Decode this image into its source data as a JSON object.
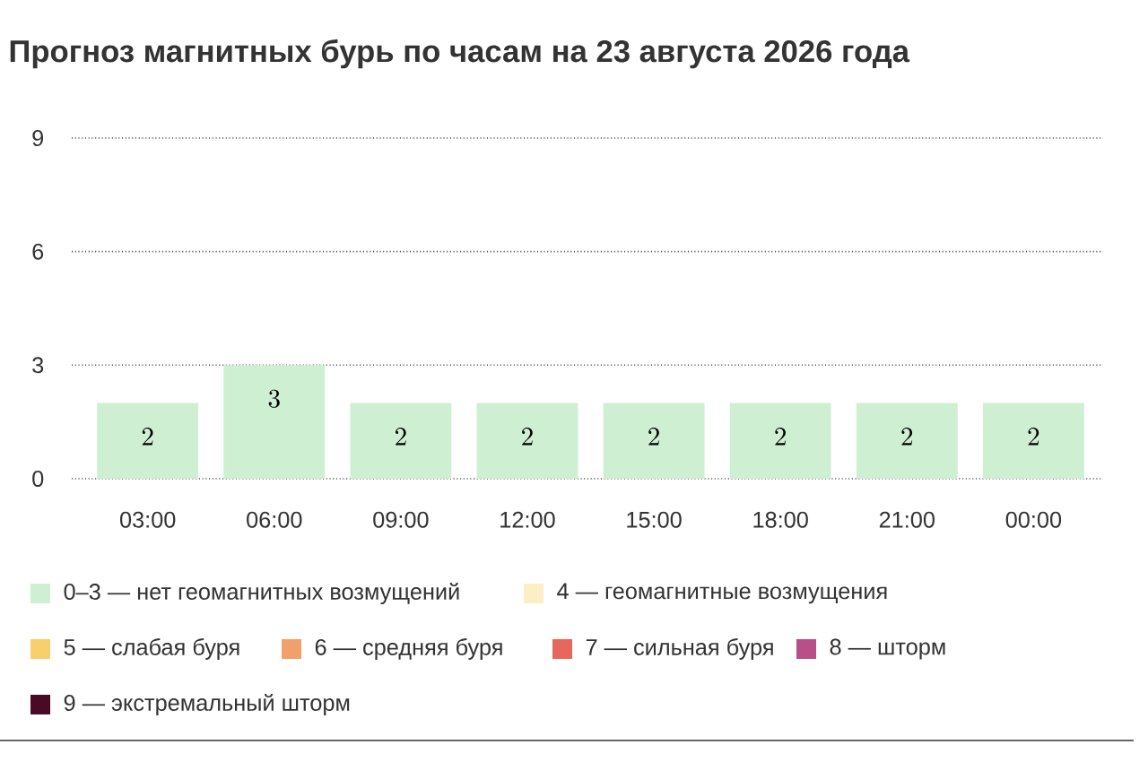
{
  "chart_data": {
    "type": "bar",
    "title": "Прогноз магнитных бурь по часам на 23 августа 2026 года",
    "categories": [
      "03:00",
      "06:00",
      "09:00",
      "12:00",
      "15:00",
      "18:00",
      "21:00",
      "00:00"
    ],
    "series": [
      {
        "name": "0–3 — нет геомагнитных возмущений",
        "color": "#cfefd3",
        "values": [
          2,
          3,
          2,
          2,
          2,
          2,
          2,
          2
        ]
      },
      {
        "name": "4 — геомагнитные возмущения",
        "color": "#fcefc6",
        "values": [
          null,
          null,
          null,
          null,
          null,
          null,
          null,
          null
        ]
      },
      {
        "name": "5 — слабая буря",
        "color": "#f7cf6b",
        "values": [
          null,
          null,
          null,
          null,
          null,
          null,
          null,
          null
        ]
      },
      {
        "name": "6 — средняя буря",
        "color": "#f1a06c",
        "values": [
          null,
          null,
          null,
          null,
          null,
          null,
          null,
          null
        ]
      },
      {
        "name": "7 — сильная буря",
        "color": "#e6685d",
        "values": [
          null,
          null,
          null,
          null,
          null,
          null,
          null,
          null
        ]
      },
      {
        "name": "8 — шторм",
        "color": "#b94f89",
        "values": [
          null,
          null,
          null,
          null,
          null,
          null,
          null,
          null
        ]
      },
      {
        "name": "9 — экстремальный шторм",
        "color": "#4a0a25",
        "values": [
          null,
          null,
          null,
          null,
          null,
          null,
          null,
          null
        ]
      }
    ],
    "ylim": [
      0,
      9
    ],
    "yticks": [
      0,
      3,
      6,
      9
    ],
    "grid": "y",
    "legend": "bottom",
    "data_labels": true
  }
}
